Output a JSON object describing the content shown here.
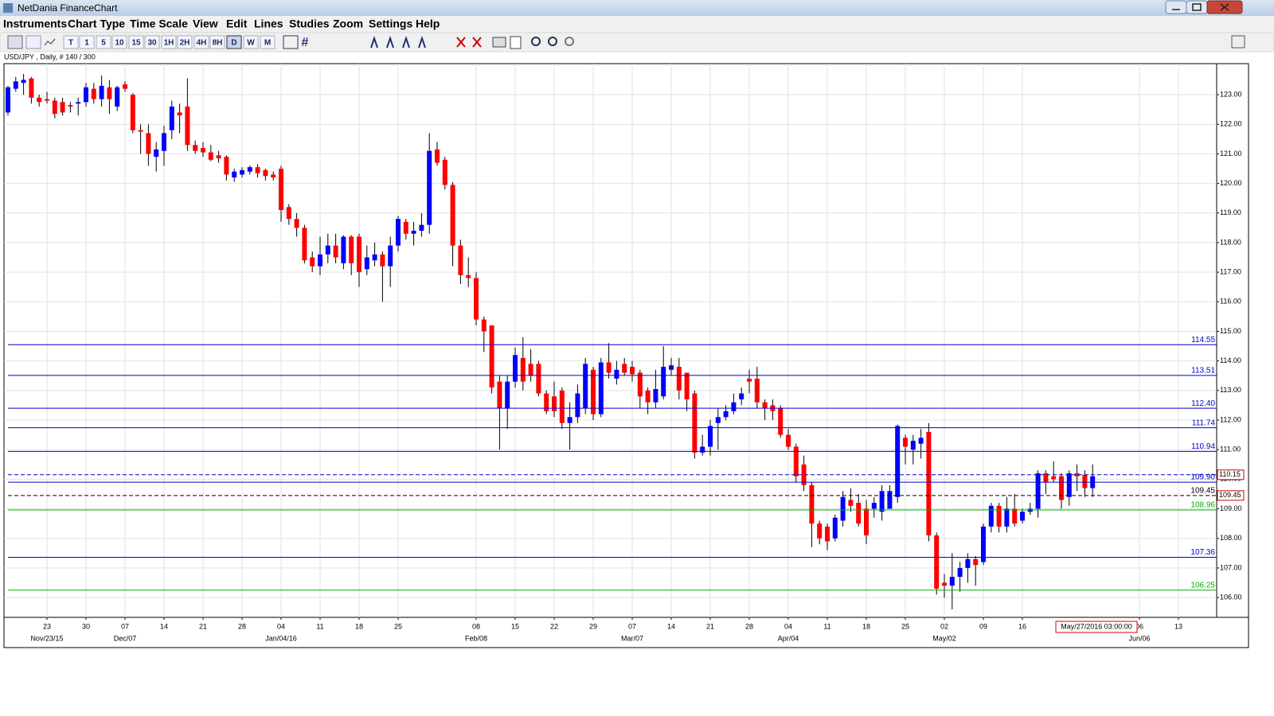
{
  "window": {
    "title": "NetDania FinanceChart",
    "menu": [
      "Instruments",
      "Chart Type",
      "Time Scale",
      "View",
      "Edit",
      "Lines",
      "Studies",
      "Zoom",
      "Settings",
      "Help"
    ]
  },
  "toolbar": {
    "timescales": [
      "T",
      "1",
      "5",
      "10",
      "15",
      "30",
      "1H",
      "2H",
      "4H",
      "8H",
      "D",
      "W",
      "M"
    ]
  },
  "chart_data": {
    "type": "candlestick",
    "title": "USD/JPY , Daily, # 140 / 300",
    "categories": [
      null,
      null,
      null,
      null,
      null,
      "23",
      null,
      null,
      null,
      null,
      "30",
      null,
      null,
      null,
      null,
      "07",
      null,
      null,
      null,
      null,
      "14",
      null,
      null,
      null,
      null,
      "21",
      null,
      null,
      null,
      null,
      "28",
      null,
      null,
      null,
      null,
      "04",
      null,
      null,
      null,
      null,
      "11",
      null,
      null,
      null,
      null,
      "18",
      null,
      null,
      null,
      null,
      "25",
      null,
      null,
      null,
      null,
      null,
      null,
      null,
      null,
      null,
      "08",
      null,
      null,
      null,
      null,
      "15",
      null,
      null,
      null,
      null,
      "22",
      null,
      null,
      null,
      null,
      "29",
      null,
      null,
      null,
      null,
      "07",
      null,
      null,
      null,
      null,
      "14",
      null,
      null,
      null,
      null,
      "21",
      null,
      null,
      null,
      null,
      "28",
      null,
      null,
      null,
      null,
      "04",
      null,
      null,
      null,
      null,
      "11",
      null,
      null,
      null,
      null,
      "18",
      null,
      null,
      null,
      null,
      "25",
      null,
      null,
      null,
      null,
      "02",
      null,
      null,
      null,
      null,
      "09",
      null,
      null,
      null,
      null,
      "16",
      null,
      null,
      null,
      null,
      null,
      null,
      null,
      null,
      null,
      null,
      null,
      null,
      null,
      null,
      "06",
      null,
      null,
      null,
      null,
      "13",
      null,
      null,
      null,
      null
    ],
    "category_sublabels": [
      null,
      null,
      null,
      null,
      null,
      "Nov/23/15",
      null,
      null,
      null,
      null,
      null,
      null,
      null,
      null,
      null,
      "Dec/07",
      null,
      null,
      null,
      null,
      null,
      null,
      null,
      null,
      null,
      null,
      null,
      null,
      null,
      null,
      null,
      null,
      null,
      null,
      null,
      "Jan/04/16",
      null,
      null,
      null,
      null,
      null,
      null,
      null,
      null,
      null,
      null,
      null,
      null,
      null,
      null,
      null,
      null,
      null,
      null,
      null,
      null,
      null,
      null,
      null,
      null,
      "Feb/08",
      null,
      null,
      null,
      null,
      null,
      null,
      null,
      null,
      null,
      null,
      null,
      null,
      null,
      null,
      null,
      null,
      null,
      null,
      null,
      "Mar/07",
      null,
      null,
      null,
      null,
      null,
      null,
      null,
      null,
      null,
      null,
      null,
      null,
      null,
      null,
      null,
      null,
      null,
      null,
      null,
      "Apr/04",
      null,
      null,
      null,
      null,
      null,
      null,
      null,
      null,
      null,
      null,
      null,
      null,
      null,
      null,
      null,
      null,
      null,
      null,
      null,
      "May/02",
      null,
      null,
      null,
      null,
      null,
      null,
      null,
      null,
      null,
      null,
      null,
      null,
      null,
      null,
      null,
      null,
      null,
      null,
      null,
      null,
      null,
      null,
      null,
      null,
      "Jun/06",
      null,
      null,
      null,
      null,
      null,
      null,
      null,
      null,
      null
    ],
    "open": [
      122.4,
      123.2,
      123.4,
      123.55,
      122.9,
      122.85,
      122.8,
      122.75,
      122.65,
      122.7,
      122.75,
      123.2,
      122.85,
      123.25,
      122.6,
      123.35,
      123.0,
      121.8,
      121.7,
      120.9,
      121.1,
      121.8,
      122.4,
      122.6,
      121.3,
      121.2,
      121.05,
      120.95,
      120.9,
      120.2,
      120.3,
      120.4,
      120.55,
      120.45,
      120.3,
      120.5,
      119.2,
      118.8,
      118.5,
      117.5,
      117.2,
      117.6,
      117.9,
      117.3,
      118.2,
      118.2,
      117.1,
      117.4,
      117.6,
      117.2,
      117.9,
      118.7,
      118.3,
      118.4,
      118.6,
      121.15,
      120.8,
      119.95,
      117.9,
      116.9,
      116.8,
      115.4,
      115.2,
      113.3,
      112.4,
      113.3,
      114.1,
      113.9,
      113.9,
      112.9,
      112.8,
      113.0,
      111.9,
      112.1,
      112.4,
      113.7,
      112.2,
      113.95,
      113.4,
      113.9,
      113.8,
      113.6,
      113.0,
      112.6,
      112.8,
      113.7,
      113.8,
      113.6,
      112.9,
      110.9,
      111.1,
      111.9,
      112.1,
      112.3,
      112.7,
      113.4,
      113.4,
      112.6,
      112.5,
      112.4,
      111.5,
      111.1,
      110.5,
      109.8,
      108.5,
      108.4,
      108.0,
      108.6,
      109.3,
      109.2,
      109.0,
      109.0,
      108.9,
      109.0,
      109.4,
      111.4,
      111.0,
      111.2,
      111.6,
      108.1,
      106.5,
      106.4,
      106.7,
      107.0,
      107.3,
      107.2,
      108.4,
      109.1,
      108.4,
      109.0,
      108.6,
      108.9,
      109.0,
      110.2,
      110.1,
      110.1,
      109.4,
      110.2,
      110.15,
      109.7,
      null,
      null,
      null,
      null,
      null,
      null,
      null,
      null,
      null,
      null,
      null,
      null,
      null,
      null,
      null
    ],
    "high": [
      123.3,
      123.6,
      123.7,
      123.6,
      123.0,
      123.1,
      122.9,
      122.9,
      122.75,
      122.9,
      123.4,
      123.4,
      123.65,
      123.5,
      123.3,
      123.45,
      123.05,
      122.0,
      122.0,
      121.4,
      121.95,
      122.8,
      122.7,
      123.55,
      121.45,
      121.4,
      121.3,
      121.1,
      120.95,
      120.5,
      120.55,
      120.6,
      120.65,
      120.5,
      120.4,
      120.6,
      119.3,
      119.0,
      118.6,
      117.7,
      118.2,
      118.3,
      118.3,
      118.25,
      118.25,
      118.3,
      117.9,
      118.0,
      117.7,
      118.2,
      118.9,
      118.8,
      118.7,
      119.0,
      121.7,
      121.4,
      120.9,
      120.05,
      118.1,
      117.5,
      117.0,
      115.5,
      115.2,
      113.5,
      113.5,
      114.45,
      114.8,
      114.4,
      114.0,
      113.0,
      113.3,
      113.1,
      112.6,
      113.2,
      114.1,
      113.8,
      114.1,
      114.6,
      114.0,
      114.1,
      114.0,
      113.7,
      113.1,
      113.7,
      114.5,
      114.1,
      114.1,
      113.6,
      113.0,
      111.5,
      112.0,
      112.4,
      112.5,
      112.9,
      113.1,
      113.7,
      113.8,
      112.7,
      112.7,
      112.5,
      111.7,
      111.2,
      110.8,
      109.9,
      108.6,
      108.5,
      108.8,
      109.6,
      109.7,
      109.5,
      109.3,
      109.4,
      109.8,
      109.8,
      111.85,
      111.5,
      111.5,
      111.7,
      111.9,
      108.2,
      106.8,
      107.5,
      107.2,
      107.5,
      107.4,
      108.5,
      109.2,
      109.2,
      109.4,
      109.5,
      109.0,
      109.2,
      110.3,
      110.3,
      110.6,
      110.2,
      110.3,
      110.5,
      110.3,
      110.5,
      null,
      null,
      null,
      null,
      null,
      null,
      null,
      null,
      null,
      null,
      null,
      null,
      null,
      null,
      null
    ],
    "low": [
      122.3,
      123.1,
      123.0,
      122.7,
      122.6,
      122.7,
      122.2,
      122.3,
      122.4,
      122.3,
      122.6,
      122.7,
      122.6,
      122.35,
      122.45,
      123.1,
      121.7,
      121.0,
      120.6,
      120.4,
      120.6,
      121.5,
      121.7,
      121.1,
      121.0,
      120.9,
      120.75,
      120.7,
      120.1,
      120.05,
      120.2,
      120.3,
      120.2,
      120.1,
      120.1,
      118.7,
      118.6,
      118.2,
      117.3,
      117.0,
      116.9,
      117.3,
      117.3,
      117.1,
      116.9,
      116.5,
      116.9,
      117.2,
      116.0,
      116.5,
      117.7,
      118.1,
      117.9,
      118.2,
      118.3,
      120.6,
      119.8,
      117.2,
      116.6,
      116.5,
      115.2,
      114.3,
      112.9,
      111.0,
      111.7,
      113.1,
      113.0,
      113.3,
      112.8,
      112.2,
      112.1,
      111.7,
      111.0,
      111.9,
      112.2,
      112.0,
      112.1,
      113.4,
      113.2,
      113.5,
      113.3,
      112.4,
      112.2,
      112.4,
      112.7,
      113.5,
      112.7,
      112.3,
      110.7,
      110.8,
      110.8,
      111.0,
      112.0,
      112.2,
      112.5,
      112.9,
      112.4,
      112.0,
      112.0,
      111.4,
      111.0,
      109.9,
      109.6,
      107.7,
      107.8,
      107.6,
      107.9,
      108.4,
      108.9,
      108.4,
      107.8,
      108.7,
      108.6,
      109.0,
      109.2,
      110.5,
      110.5,
      110.7,
      107.9,
      106.1,
      106.0,
      105.6,
      106.2,
      106.5,
      106.4,
      107.1,
      108.2,
      108.2,
      108.2,
      108.4,
      108.5,
      108.8,
      108.7,
      109.5,
      109.9,
      109.0,
      109.1,
      109.6,
      109.4,
      109.4,
      null,
      null,
      null,
      null,
      null,
      null,
      null,
      null,
      null,
      null,
      null,
      null,
      null,
      null,
      null
    ],
    "close": [
      123.25,
      123.45,
      123.5,
      122.9,
      122.75,
      122.8,
      122.35,
      122.4,
      122.6,
      122.75,
      123.25,
      122.85,
      123.3,
      122.85,
      123.25,
      123.2,
      121.8,
      121.75,
      121.0,
      121.15,
      121.7,
      122.6,
      122.3,
      121.3,
      121.1,
      121.05,
      120.8,
      120.85,
      120.3,
      120.4,
      120.45,
      120.55,
      120.35,
      120.25,
      120.2,
      119.1,
      118.8,
      118.5,
      117.4,
      117.2,
      117.6,
      117.9,
      117.5,
      118.2,
      117.3,
      117.0,
      117.5,
      117.6,
      117.2,
      117.9,
      118.8,
      118.3,
      118.4,
      118.6,
      121.1,
      120.7,
      119.95,
      117.9,
      116.9,
      116.8,
      115.4,
      115.0,
      113.1,
      112.4,
      113.3,
      114.2,
      113.3,
      113.5,
      112.9,
      112.3,
      112.3,
      111.9,
      112.1,
      112.9,
      113.9,
      112.2,
      113.95,
      113.6,
      113.7,
      113.6,
      113.55,
      112.8,
      112.6,
      113.05,
      113.8,
      113.85,
      113.0,
      112.7,
      110.9,
      111.1,
      111.8,
      112.1,
      112.3,
      112.6,
      112.9,
      113.3,
      112.6,
      112.4,
      112.3,
      111.5,
      111.1,
      110.1,
      109.8,
      108.5,
      108.0,
      107.9,
      108.7,
      109.4,
      109.1,
      108.5,
      108.1,
      109.2,
      109.6,
      109.6,
      111.8,
      111.1,
      111.3,
      111.4,
      108.1,
      106.3,
      106.4,
      106.7,
      107.0,
      107.3,
      107.1,
      108.4,
      109.1,
      108.4,
      109.0,
      108.5,
      108.9,
      109.0,
      110.2,
      109.9,
      110.0,
      109.3,
      110.2,
      110.1,
      109.7,
      110.1,
      null,
      null,
      null,
      null,
      null,
      null,
      null,
      null,
      null,
      null,
      null,
      null,
      null,
      null,
      null
    ],
    "up_color": "#0000ff",
    "down_color": "#ff0000",
    "ylim": [
      105.33,
      124.05
    ],
    "yticks": [
      {
        "value": 106,
        "label": "106.00"
      },
      {
        "value": 107,
        "label": "107.00"
      },
      {
        "value": 108,
        "label": "108.00"
      },
      {
        "value": 109,
        "label": "109.00"
      },
      {
        "value": 110,
        "label": "110.00"
      },
      {
        "value": 111,
        "label": "111.00"
      },
      {
        "value": 112,
        "label": "112.00"
      },
      {
        "value": 113,
        "label": "113.00"
      },
      {
        "value": 114,
        "label": "114.00"
      },
      {
        "value": 115,
        "label": "115.00"
      },
      {
        "value": 116,
        "label": "116.00"
      },
      {
        "value": 117,
        "label": "117.00"
      },
      {
        "value": 118,
        "label": "118.00"
      },
      {
        "value": 119,
        "label": "119.00"
      },
      {
        "value": 120,
        "label": "120.00"
      },
      {
        "value": 121,
        "label": "121.00"
      },
      {
        "value": 122,
        "label": "122.00"
      },
      {
        "value": 123,
        "label": "123.00"
      }
    ],
    "grid": true,
    "levels": [
      {
        "value": 114.55,
        "label": "114.55",
        "color": "#0000cc",
        "dashed": false,
        "show": "plot"
      },
      {
        "value": 113.51,
        "label": "113.51",
        "color": "#0000cc",
        "dashed": false,
        "show": "plot"
      },
      {
        "value": 112.4,
        "label": "112.40",
        "color": "#0000cc",
        "dashed": false,
        "show": "plot"
      },
      {
        "value": 111.74,
        "label": "111.74",
        "color": "#0000cc",
        "dashed": false,
        "show": "plot"
      },
      {
        "value": 110.94,
        "label": "110.94",
        "color": "#0000cc",
        "dashed": false,
        "show": "plot"
      },
      {
        "value": 110.15,
        "label": "110.15",
        "color": "#0000cc",
        "dashed": true,
        "show": "axis"
      },
      {
        "value": 109.9,
        "label": "109.90",
        "color": "#0000cc",
        "dashed": false,
        "show": "plot"
      },
      {
        "value": 109.45,
        "label": "109.45",
        "color": "#000000",
        "dashed": true,
        "show": "both"
      },
      {
        "value": 108.96,
        "label": "108.96",
        "color": "#00b000",
        "dashed": false,
        "show": "plot"
      },
      {
        "value": 107.36,
        "label": "107.36",
        "color": "#0000cc",
        "dashed": false,
        "show": "plot"
      },
      {
        "value": 106.25,
        "label": "106.25",
        "color": "#00b000",
        "dashed": false,
        "show": "plot"
      }
    ],
    "cursor_label": "May/27/2016 03:00:00"
  }
}
